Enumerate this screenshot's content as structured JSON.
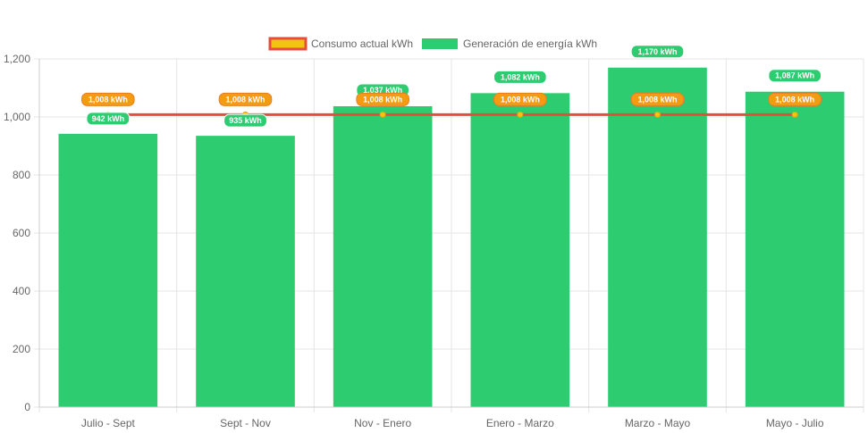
{
  "chart_data": {
    "type": "bar",
    "categories": [
      "Julio - Sept",
      "Sept - Nov",
      "Nov - Enero",
      "Enero - Marzo",
      "Marzo - Mayo",
      "Mayo - Julio"
    ],
    "series": [
      {
        "name": "Consumo actual kWh",
        "type": "line",
        "values": [
          1008,
          1008,
          1008,
          1008,
          1008,
          1008
        ],
        "labels": [
          "1,008 kWh",
          "1,008 kWh",
          "1,008 kWh",
          "1,008 kWh",
          "1,008 kWh",
          "1,008 kWh"
        ],
        "color": "#e74c3c",
        "fill": "#f1c40f",
        "label_bg": "#f39c12"
      },
      {
        "name": "Generación de energía kWh",
        "type": "bar",
        "values": [
          942,
          935,
          1037,
          1082,
          1170,
          1087
        ],
        "labels": [
          "942 kWh",
          "935 kWh",
          "1,037 kWh",
          "1,082 kWh",
          "1,170 kWh",
          "1,087 kWh"
        ],
        "color": "#2ecc71"
      }
    ],
    "ylim": [
      0,
      1200
    ],
    "yticks": [
      0,
      200,
      400,
      600,
      800,
      1000,
      1200
    ],
    "ytick_labels": [
      "0",
      "200",
      "400",
      "600",
      "800",
      "1,000",
      "1,200"
    ],
    "legend_position": "top",
    "grid": true,
    "title": "",
    "xlabel": "",
    "ylabel": ""
  }
}
